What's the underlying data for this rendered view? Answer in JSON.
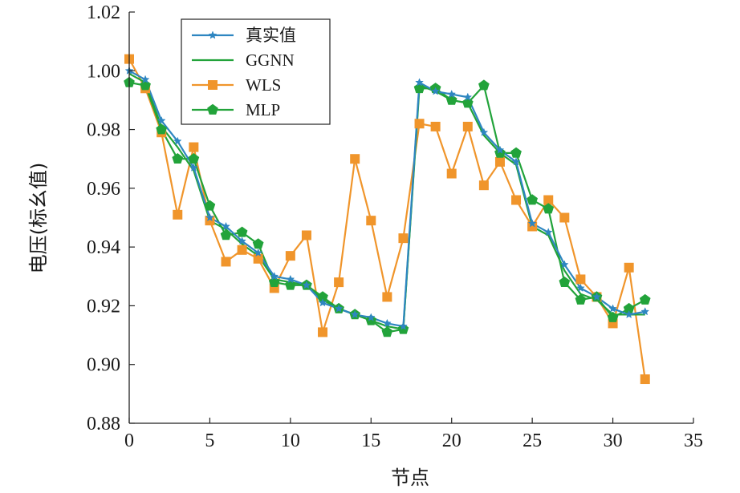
{
  "chart_data": {
    "type": "line",
    "title": "",
    "xlabel": "节点",
    "ylabel": "电压(标幺值)",
    "xlim": [
      0,
      35
    ],
    "ylim": [
      0.88,
      1.02
    ],
    "xticks": [
      0,
      5,
      10,
      15,
      20,
      25,
      30,
      35
    ],
    "yticks": [
      0.88,
      0.9,
      0.92,
      0.94,
      0.96,
      0.98,
      1.0,
      1.02
    ],
    "xtick_labels": [
      "0",
      "5",
      "10",
      "15",
      "20",
      "25",
      "30",
      "35"
    ],
    "ytick_labels": [
      "0.88",
      "0.90",
      "0.92",
      "0.94",
      "0.96",
      "0.98",
      "1.00",
      "1.02"
    ],
    "grid": false,
    "legend_position": "top-left",
    "x": [
      0,
      1,
      2,
      3,
      4,
      5,
      6,
      7,
      8,
      9,
      10,
      11,
      12,
      13,
      14,
      15,
      16,
      17,
      18,
      19,
      20,
      21,
      22,
      23,
      24,
      25,
      26,
      27,
      28,
      29,
      30,
      31,
      32
    ],
    "series": [
      {
        "name": "真实值",
        "color": "#2e86c1",
        "marker": "star",
        "values": [
          1.0,
          0.997,
          0.983,
          0.976,
          0.967,
          0.95,
          0.947,
          0.942,
          0.938,
          0.93,
          0.929,
          0.927,
          0.921,
          0.919,
          0.917,
          0.916,
          0.914,
          0.913,
          0.996,
          0.993,
          0.992,
          0.991,
          0.979,
          0.973,
          0.969,
          0.948,
          0.945,
          0.934,
          0.926,
          0.923,
          0.919,
          0.917,
          0.918
        ]
      },
      {
        "name": "GGNN",
        "color": "#22a33a",
        "marker": "none",
        "values": [
          0.999,
          0.996,
          0.981,
          0.974,
          0.966,
          0.949,
          0.946,
          0.941,
          0.937,
          0.929,
          0.928,
          0.927,
          0.922,
          0.919,
          0.917,
          0.915,
          0.913,
          0.912,
          0.995,
          0.993,
          0.99,
          0.989,
          0.978,
          0.972,
          0.968,
          0.947,
          0.944,
          0.932,
          0.924,
          0.922,
          0.917,
          0.917,
          0.917
        ]
      },
      {
        "name": "WLS",
        "color": "#f0952b",
        "marker": "square",
        "values": [
          1.004,
          0.994,
          0.979,
          0.951,
          0.974,
          0.949,
          0.935,
          0.939,
          0.936,
          0.926,
          0.937,
          0.944,
          0.911,
          0.928,
          0.97,
          0.949,
          0.923,
          0.943,
          0.982,
          0.981,
          0.965,
          0.981,
          0.961,
          0.969,
          0.956,
          0.947,
          0.956,
          0.95,
          0.929,
          0.923,
          0.914,
          0.933,
          0.895
        ]
      },
      {
        "name": "MLP",
        "color": "#22a33a",
        "marker": "pentagon",
        "values": [
          0.996,
          0.995,
          0.98,
          0.97,
          0.97,
          0.954,
          0.944,
          0.945,
          0.941,
          0.928,
          0.927,
          0.927,
          0.923,
          0.919,
          0.917,
          0.915,
          0.911,
          0.912,
          0.994,
          0.994,
          0.99,
          0.989,
          0.995,
          0.972,
          0.972,
          0.956,
          0.953,
          0.928,
          0.922,
          0.923,
          0.916,
          0.919,
          0.922
        ]
      }
    ]
  }
}
